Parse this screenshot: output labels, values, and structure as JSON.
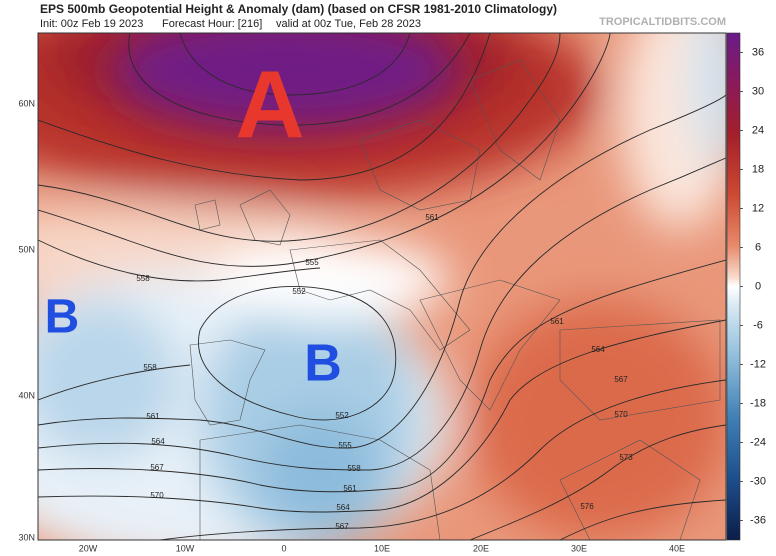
{
  "header": {
    "title": "EPS 500mb Geopotential Height & Anomaly (dam) (based on CFSR 1981-2010 Climatology)",
    "init": "Init: 00z Feb 19 2023",
    "forecast_hour": "Forecast Hour: [216]",
    "valid": "valid at 00z Tue, Feb 28 2023",
    "source": "TROPICALTIDBITS.COM"
  },
  "map": {
    "latitude_labels": [
      "60N",
      "50N",
      "40N",
      "30N"
    ],
    "longitude_labels": [
      "20W",
      "10W",
      "0",
      "10E",
      "20E",
      "30E",
      "40E"
    ],
    "annotations": [
      "A",
      "B",
      "B"
    ],
    "contour_labels": [
      558,
      555,
      552,
      558,
      561,
      564,
      567,
      570,
      552,
      555,
      558,
      561,
      564,
      567,
      561,
      561,
      564,
      567,
      570,
      573,
      576
    ]
  },
  "colorbar": {
    "ticks": [
      36,
      30,
      24,
      18,
      12,
      6,
      0,
      -6,
      -12,
      -18,
      -24,
      -30,
      -36
    ],
    "range": [
      -39,
      39
    ]
  }
}
